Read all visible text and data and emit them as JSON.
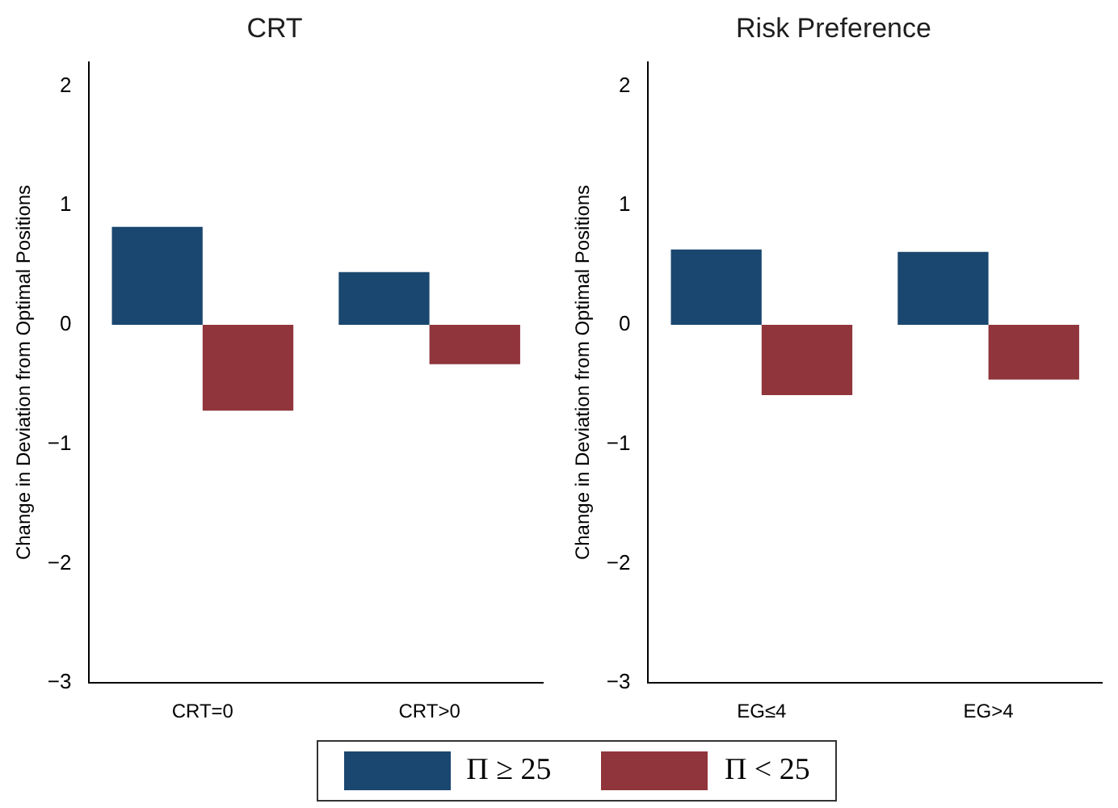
{
  "chart_data": [
    {
      "type": "bar",
      "title": "CRT",
      "ylabel": "Change in Deviation from Optimal Positions",
      "categories": [
        "CRT=0",
        "CRT>0"
      ],
      "series": [
        {
          "name": "Π ≥ 25",
          "color": "#1a476f",
          "values": [
            0.82,
            0.44
          ]
        },
        {
          "name": "Π < 25",
          "color": "#90353b",
          "values": [
            -0.72,
            -0.33
          ]
        }
      ],
      "ylim": [
        -3,
        2.2
      ],
      "yticks": [
        -3,
        -2,
        -1,
        0,
        1,
        2
      ],
      "grid": false,
      "legend": "bottom"
    },
    {
      "type": "bar",
      "title": "Risk Preference",
      "ylabel": "Change in Deviation from Optimal Positions",
      "categories": [
        "EG≤4",
        "EG>4"
      ],
      "series": [
        {
          "color": "#1a476f",
          "values": [
            0.63,
            0.61
          ]
        },
        {
          "color": "#90353b",
          "values": [
            -0.59,
            -0.46
          ]
        }
      ],
      "ylim": [
        -3,
        2.2
      ],
      "yticks": [
        -3,
        -2,
        -1,
        0,
        1,
        2
      ],
      "grid": false
    }
  ]
}
